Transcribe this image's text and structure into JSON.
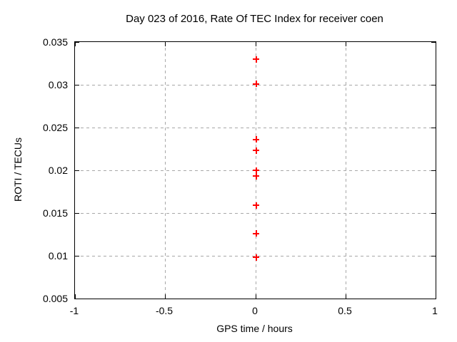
{
  "page": {
    "background": "#ffffff"
  },
  "chart_data": {
    "type": "scatter",
    "title": "Day 023 of 2016, Rate Of TEC Index for receiver coen",
    "xlabel": "GPS time / hours",
    "ylabel": "ROTI / TECUs",
    "xlim": [
      -1,
      1
    ],
    "ylim": [
      0.005,
      0.035
    ],
    "x_ticks": [
      {
        "value": -1,
        "label": "-1"
      },
      {
        "value": -0.5,
        "label": "-0.5"
      },
      {
        "value": 0,
        "label": "0"
      },
      {
        "value": 0.5,
        "label": "0.5"
      },
      {
        "value": 1,
        "label": "1"
      }
    ],
    "y_ticks": [
      {
        "value": 0.005,
        "label": "0.005"
      },
      {
        "value": 0.01,
        "label": "0.01"
      },
      {
        "value": 0.015,
        "label": "0.015"
      },
      {
        "value": 0.02,
        "label": "0.02"
      },
      {
        "value": 0.025,
        "label": "0.025"
      },
      {
        "value": 0.03,
        "label": "0.03"
      },
      {
        "value": 0.035,
        "label": "0.035"
      }
    ],
    "grid": true,
    "legend": "none",
    "series": [
      {
        "name": "ROTI",
        "marker": "plus",
        "color": "#ff0000",
        "points": [
          {
            "x": 0.005,
            "y": 0.033
          },
          {
            "x": 0.005,
            "y": 0.0301
          },
          {
            "x": 0.005,
            "y": 0.0236
          },
          {
            "x": 0.005,
            "y": 0.0223
          },
          {
            "x": 0.005,
            "y": 0.02
          },
          {
            "x": 0.005,
            "y": 0.0193
          },
          {
            "x": 0.005,
            "y": 0.0159
          },
          {
            "x": 0.005,
            "y": 0.0126
          },
          {
            "x": 0.005,
            "y": 0.0098
          }
        ]
      }
    ],
    "colors": {
      "marker": "#ff0000",
      "grid": "#a8a8a8",
      "axis": "#000000",
      "text": "#000000",
      "background": "#ffffff"
    }
  }
}
